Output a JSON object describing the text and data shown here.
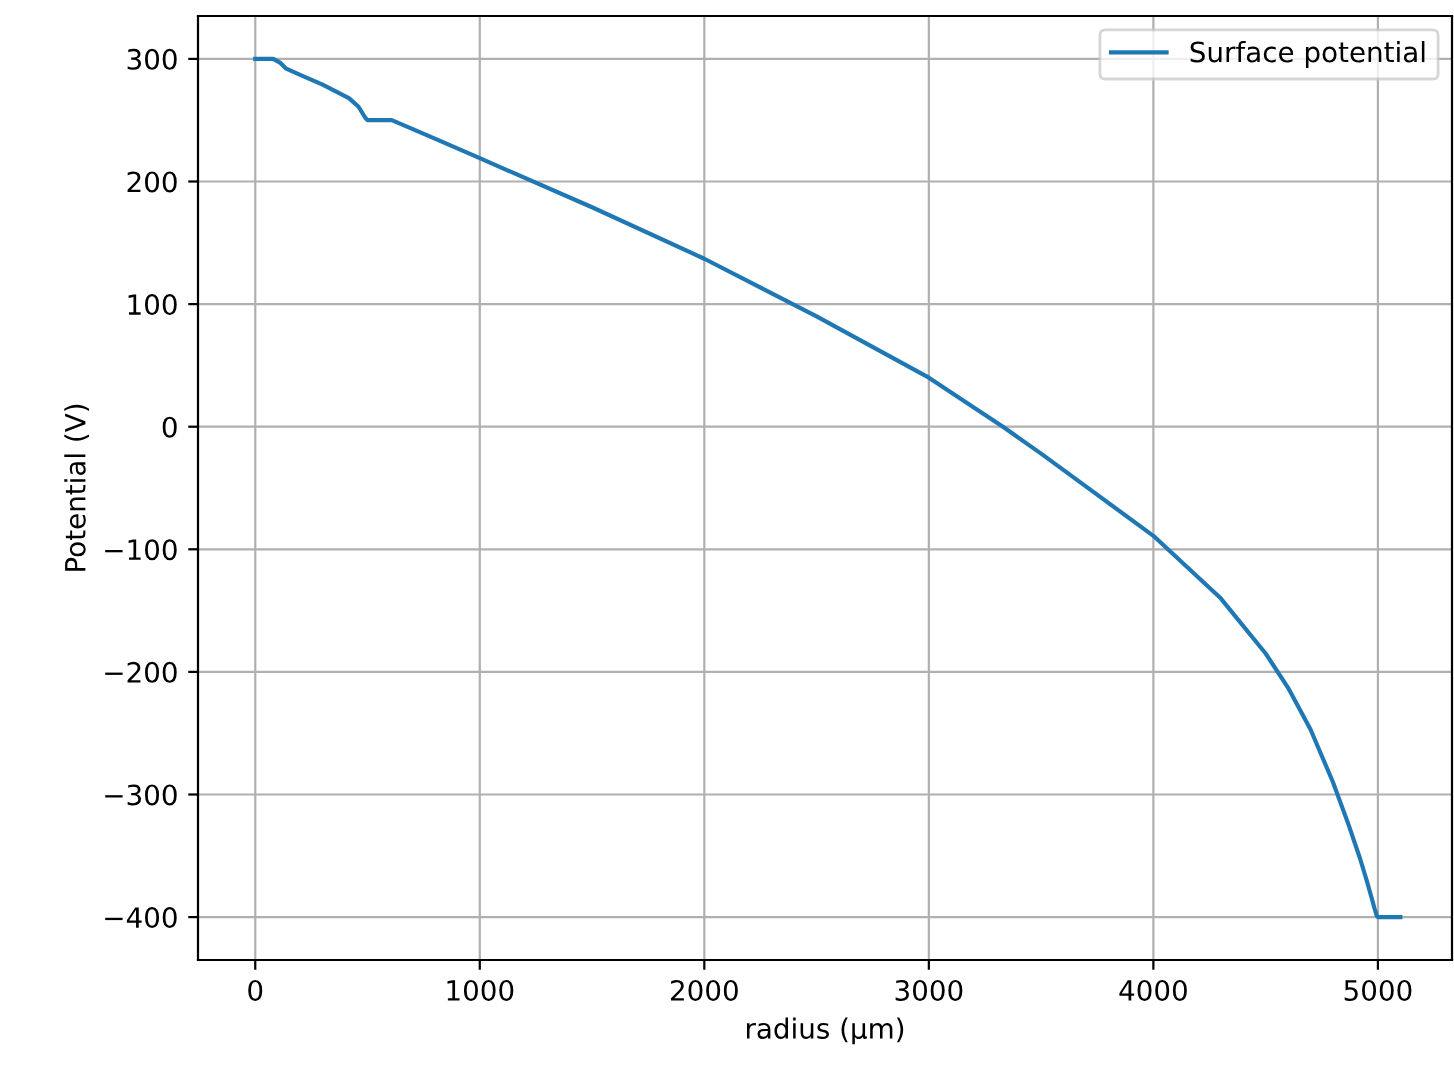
{
  "chart_data": {
    "type": "line",
    "xlabel": "radius (μm)",
    "ylabel": "Potential (V)",
    "x": [
      0,
      80,
      110,
      138,
      200,
      300,
      417,
      460,
      490,
      500,
      608,
      800,
      1000,
      1500,
      2000,
      2500,
      3000,
      3330,
      3500,
      4000,
      4300,
      4500,
      4600,
      4700,
      4800,
      4870,
      4920,
      4950,
      4970,
      4985,
      4995,
      5000,
      5100
    ],
    "series": [
      {
        "name": "Surface potential",
        "color": "#1f77b4",
        "values": [
          300,
          300,
          297,
          292,
          287,
          279,
          268,
          261,
          252,
          250,
          250,
          235,
          219,
          179,
          137,
          90,
          40,
          0,
          -22,
          -89,
          -140,
          -185,
          -213,
          -247,
          -290,
          -325,
          -352,
          -370,
          -383,
          -393,
          -399,
          -400,
          -400
        ]
      }
    ],
    "xlim": [
      -255,
      5330
    ],
    "ylim": [
      -435,
      335
    ],
    "xticks": [
      0,
      1000,
      2000,
      3000,
      4000,
      5000
    ],
    "yticks": [
      {
        "value": -400,
        "label": "−400"
      },
      {
        "value": -300,
        "label": "−300"
      },
      {
        "value": -200,
        "label": "−200"
      },
      {
        "value": -100,
        "label": "−100"
      },
      0,
      100,
      200,
      300
    ],
    "grid": true,
    "legend": "top right"
  }
}
